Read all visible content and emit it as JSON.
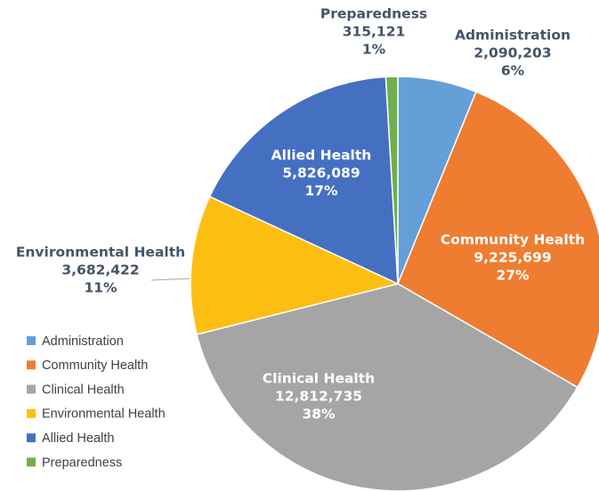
{
  "chart_data": {
    "type": "pie",
    "categories": [
      "Administration",
      "Community Health",
      "Clinical Health",
      "Environmental Health",
      "Allied Health",
      "Preparedness"
    ],
    "values": [
      2090203,
      9225699,
      12812735,
      3682422,
      5826089,
      315121
    ],
    "value_labels": [
      "2,090,203",
      "9,225,699",
      "12,812,735",
      "3,682,422",
      "5,826,089",
      "315,121"
    ],
    "percentages": [
      6,
      27,
      38,
      11,
      17,
      1
    ],
    "percentage_labels": [
      "6%",
      "27%",
      "38%",
      "11%",
      "17%",
      "1%"
    ],
    "colors": [
      "#649fd8",
      "#ee7d31",
      "#a5a5a5",
      "#fdbe12",
      "#4570c2",
      "#6fb04a"
    ],
    "legend": "left"
  }
}
